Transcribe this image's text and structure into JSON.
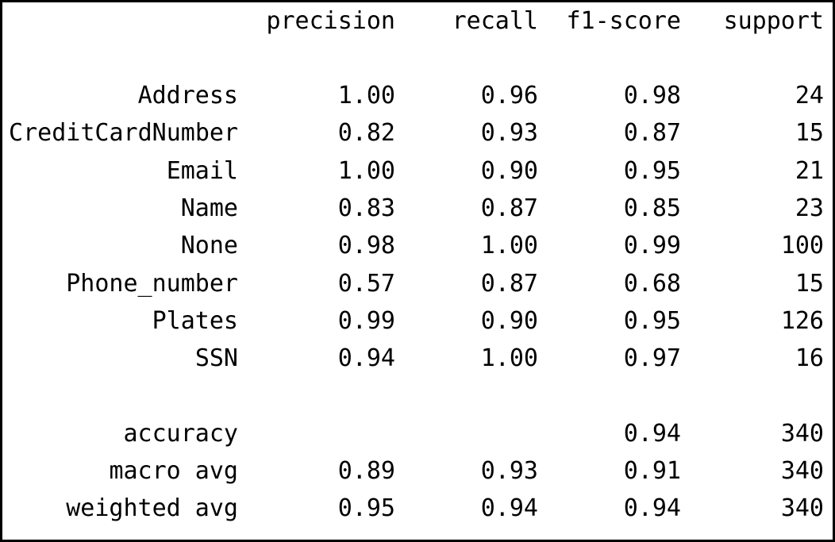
{
  "report": {
    "headers": {
      "precision": "precision",
      "recall": "recall",
      "f1": "f1-score",
      "support": "support"
    },
    "classes": [
      {
        "label": "Address",
        "precision": "1.00",
        "recall": "0.96",
        "f1": "0.98",
        "support": "24"
      },
      {
        "label": "CreditCardNumber",
        "precision": "0.82",
        "recall": "0.93",
        "f1": "0.87",
        "support": "15"
      },
      {
        "label": "Email",
        "precision": "1.00",
        "recall": "0.90",
        "f1": "0.95",
        "support": "21"
      },
      {
        "label": "Name",
        "precision": "0.83",
        "recall": "0.87",
        "f1": "0.85",
        "support": "23"
      },
      {
        "label": "None",
        "precision": "0.98",
        "recall": "1.00",
        "f1": "0.99",
        "support": "100"
      },
      {
        "label": "Phone_number",
        "precision": "0.57",
        "recall": "0.87",
        "f1": "0.68",
        "support": "15"
      },
      {
        "label": "Plates",
        "precision": "0.99",
        "recall": "0.90",
        "f1": "0.95",
        "support": "126"
      },
      {
        "label": "SSN",
        "precision": "0.94",
        "recall": "1.00",
        "f1": "0.97",
        "support": "16"
      }
    ],
    "accuracy": {
      "label": "accuracy",
      "f1": "0.94",
      "support": "340"
    },
    "macro_avg": {
      "label": "macro avg",
      "precision": "0.89",
      "recall": "0.93",
      "f1": "0.91",
      "support": "340"
    },
    "weighted_avg": {
      "label": "weighted avg",
      "precision": "0.95",
      "recall": "0.94",
      "f1": "0.94",
      "support": "340"
    }
  }
}
